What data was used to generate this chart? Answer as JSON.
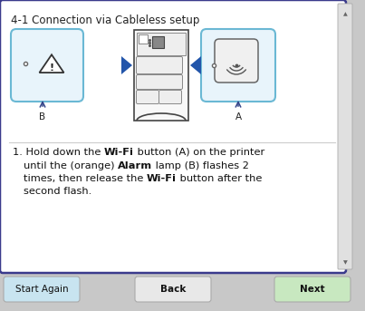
{
  "title": "4-1 Connection via Cableless setup",
  "bg_color": "#ffffff",
  "outer_bg": "#c8c8c8",
  "border_color": "#3a3a8c",
  "blue_box_edge": "#6ab8d4",
  "blue_box_face": "#e8f4fb",
  "arrow_color": "#2255aa",
  "printer_edge": "#444444",
  "printer_face": "#f8f8f8",
  "button_start_color": "#c8e4f0",
  "button_back_color": "#e8e8e8",
  "button_next_color": "#c8e8c0",
  "text_color": "#222222",
  "line_color": "#cccccc",
  "scrollbar_color": "#e0e0e0",
  "buttons": [
    "Start Again",
    "Back",
    "Next"
  ],
  "label_a": "A",
  "label_b": "B",
  "figw": 4.03,
  "figh": 3.43,
  "dpi": 100
}
